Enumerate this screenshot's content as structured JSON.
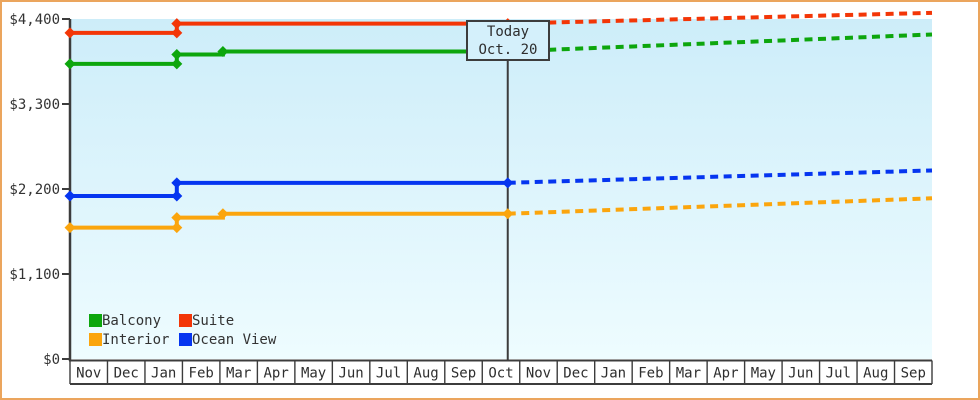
{
  "frame": {
    "border_color": "#eba55d",
    "background": "#ffffff"
  },
  "chart_data": {
    "type": "line",
    "title": "",
    "currency": "USD",
    "description": "Cabin price history (solid) and forecast (dashed) over 23 months",
    "y_axis": {
      "max": 4400,
      "ticks": [
        {
          "value": 0,
          "label": "$0"
        },
        {
          "value": 1100,
          "label": "$1,100"
        },
        {
          "value": 2200,
          "label": "$2,200"
        },
        {
          "value": 3300,
          "label": "$3,300"
        },
        {
          "value": 4400,
          "label": "$4,400"
        }
      ]
    },
    "x_axis": {
      "unit": "month",
      "months": [
        "Nov",
        "Dec",
        "Jan",
        "Feb",
        "Mar",
        "Apr",
        "May",
        "Jun",
        "Jul",
        "Aug",
        "Sep",
        "Oct",
        "Nov",
        "Dec",
        "Jan",
        "Feb",
        "Mar",
        "Apr",
        "May",
        "Jun",
        "Jul",
        "Aug",
        "Sep"
      ]
    },
    "today_marker": {
      "line1": "Today",
      "line2": "Oct. 20",
      "t": 11.68
    },
    "plot_background": {
      "top": "#cdedf9",
      "bottom": "#eefcff"
    },
    "axis_color": "#3c3c3c",
    "series": [
      {
        "name": "Suite",
        "color": "#f33607",
        "history": [
          [
            0,
            4220
          ],
          [
            2.85,
            4220
          ],
          [
            2.85,
            4340
          ],
          [
            11.68,
            4340
          ]
        ],
        "markers": [
          [
            0,
            4220
          ],
          [
            2.85,
            4220
          ],
          [
            2.85,
            4340
          ],
          [
            11.68,
            4340
          ]
        ],
        "forecast": [
          [
            11.68,
            4340
          ],
          [
            23,
            4480
          ]
        ]
      },
      {
        "name": "Balcony",
        "color": "#0da60d",
        "history": [
          [
            0,
            3820
          ],
          [
            2.85,
            3820
          ],
          [
            2.85,
            3940
          ],
          [
            4.08,
            3940
          ],
          [
            4.08,
            3980
          ],
          [
            11.68,
            3980
          ]
        ],
        "markers": [
          [
            0,
            3820
          ],
          [
            2.85,
            3820
          ],
          [
            2.85,
            3940
          ],
          [
            4.08,
            3980
          ],
          [
            11.68,
            3980
          ]
        ],
        "forecast": [
          [
            11.68,
            3980
          ],
          [
            23,
            4200
          ]
        ]
      },
      {
        "name": "Ocean View",
        "color": "#0535f0",
        "history": [
          [
            0,
            2110
          ],
          [
            2.85,
            2110
          ],
          [
            2.85,
            2280
          ],
          [
            11.68,
            2280
          ]
        ],
        "markers": [
          [
            0,
            2110
          ],
          [
            2.85,
            2110
          ],
          [
            2.85,
            2280
          ],
          [
            11.68,
            2280
          ]
        ],
        "forecast": [
          [
            11.68,
            2280
          ],
          [
            23,
            2440
          ]
        ]
      },
      {
        "name": "Interior",
        "color": "#fba50d",
        "history": [
          [
            0,
            1700
          ],
          [
            2.85,
            1700
          ],
          [
            2.85,
            1830
          ],
          [
            4.08,
            1830
          ],
          [
            4.08,
            1880
          ],
          [
            11.68,
            1880
          ]
        ],
        "markers": [
          [
            0,
            1700
          ],
          [
            2.85,
            1700
          ],
          [
            2.85,
            1830
          ],
          [
            4.08,
            1880
          ],
          [
            11.68,
            1880
          ]
        ],
        "forecast": [
          [
            11.68,
            1880
          ],
          [
            23,
            2080
          ]
        ]
      }
    ],
    "legend": {
      "position": "bottom-left",
      "items": [
        {
          "label": "Balcony",
          "color": "#0da60d"
        },
        {
          "label": "Suite",
          "color": "#f33607"
        },
        {
          "label": "Interior",
          "color": "#fba50d"
        },
        {
          "label": "Ocean View",
          "color": "#0535f0"
        }
      ]
    }
  }
}
